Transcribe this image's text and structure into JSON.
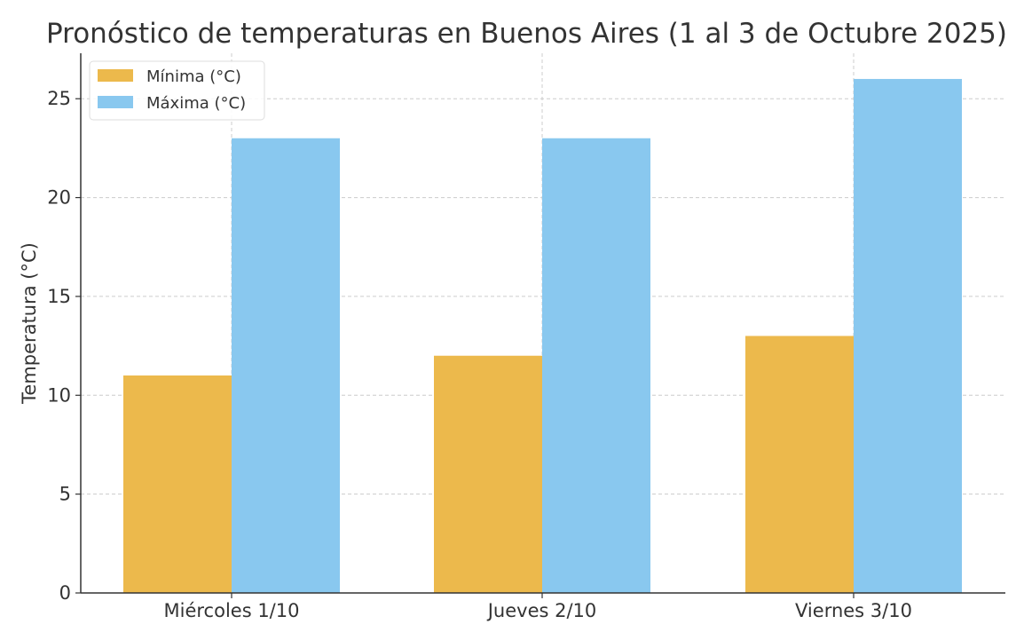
{
  "chart_data": {
    "type": "bar",
    "title": "Pronóstico de temperaturas en Buenos Aires (1 al 3 de Octubre 2025)",
    "xlabel": "",
    "ylabel": "Temperatura (°C)",
    "categories": [
      "Miércoles 1/10",
      "Jueves 2/10",
      "Viernes 3/10"
    ],
    "series": [
      {
        "name": "Mínima (°C)",
        "values": [
          11,
          12,
          13
        ],
        "color": "#ECB94C"
      },
      {
        "name": "Máxima (°C)",
        "values": [
          23,
          23,
          26
        ],
        "color": "#89C8EF"
      }
    ],
    "ylim": [
      0,
      27.3
    ],
    "yticks": [
      0,
      5,
      10,
      15,
      20,
      25
    ],
    "grid": true,
    "legend": "top-left"
  }
}
